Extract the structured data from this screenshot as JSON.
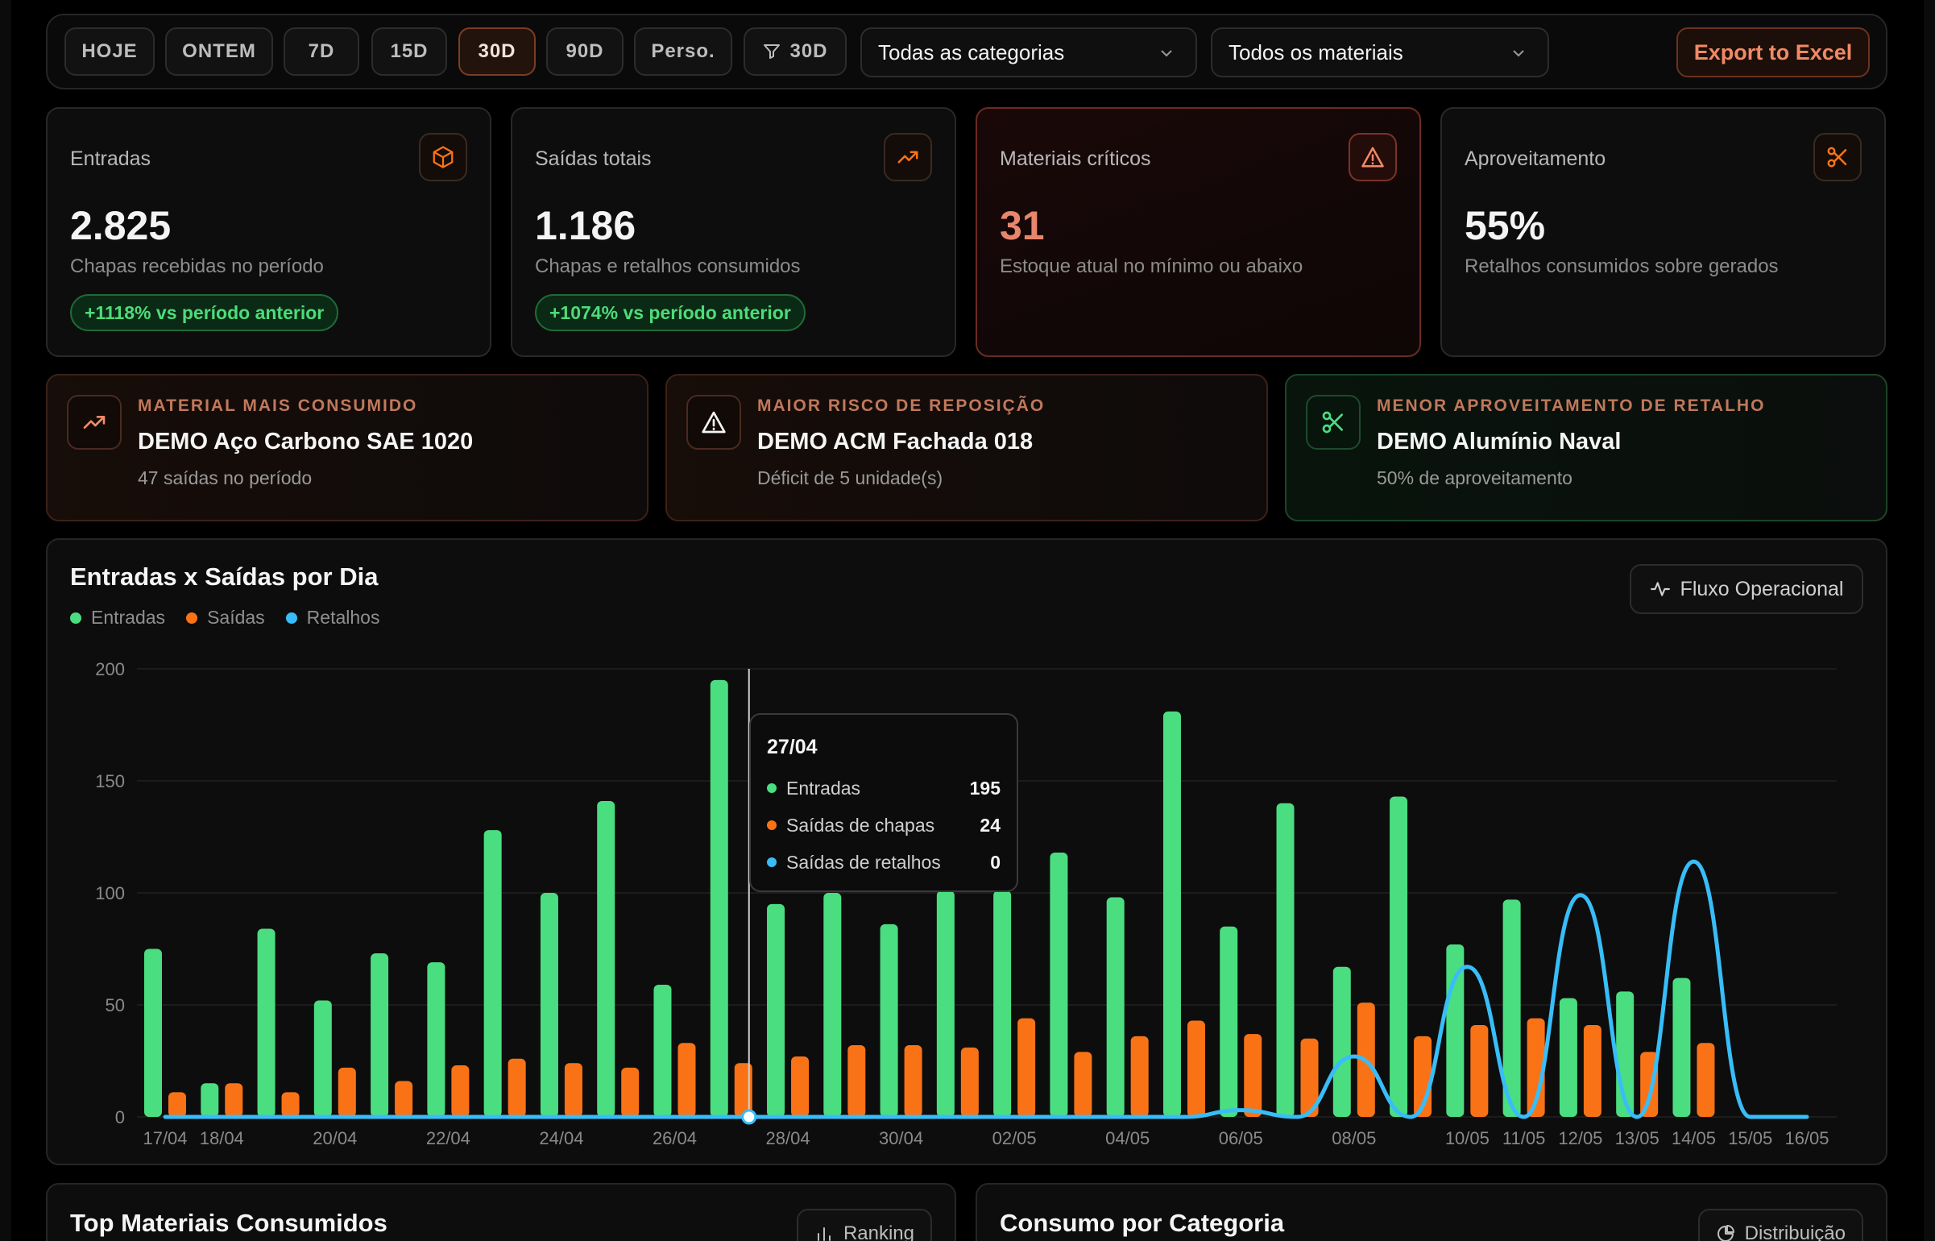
{
  "filters": {
    "periods": [
      "HOJE",
      "ONTEM",
      "7D",
      "15D",
      "30D",
      "90D",
      "Perso."
    ],
    "active_period": "30D",
    "filter_chip": "30D",
    "category_select": "Todas as categorias",
    "material_select": "Todos os materiais",
    "export_label": "Export to Excel"
  },
  "kpis": [
    {
      "label": "Entradas",
      "value": "2.825",
      "sub": "Chapas recebidas no período",
      "badge": "+1118% vs período anterior",
      "icon": "box-icon"
    },
    {
      "label": "Saídas totais",
      "value": "1.186",
      "sub": "Chapas e retalhos consumidos",
      "badge": "+1074% vs período anterior",
      "icon": "trending-up-icon"
    },
    {
      "label": "Materiais críticos",
      "value": "31",
      "sub": "Estoque atual no mínimo ou abaixo",
      "icon": "alert-icon"
    },
    {
      "label": "Aproveitamento",
      "value": "55%",
      "sub": "Retalhos consumidos sobre gerados",
      "icon": "scissors-icon"
    }
  ],
  "insights": [
    {
      "kicker": "MATERIAL MAIS CONSUMIDO",
      "title": "DEMO Aço Carbono SAE 1020",
      "desc": "47 saídas no período",
      "icon": "trending-up-icon"
    },
    {
      "kicker": "MAIOR RISCO DE REPOSIÇÃO",
      "title": "DEMO ACM Fachada 018",
      "desc": "Déficit de 5 unidade(s)",
      "icon": "alert-icon"
    },
    {
      "kicker": "MENOR APROVEITAMENTO DE RETALHO",
      "title": "DEMO Alumínio Naval",
      "desc": "50% de aproveitamento",
      "icon": "scissors-icon"
    }
  ],
  "chart_panel": {
    "title": "Entradas x Saídas por Dia",
    "button": "Fluxo Operacional"
  },
  "tooltip": {
    "date": "27/04",
    "rows": [
      {
        "label": "Entradas",
        "value": "195"
      },
      {
        "label": "Saídas de chapas",
        "value": "24"
      },
      {
        "label": "Saídas de retalhos",
        "value": "0"
      }
    ]
  },
  "bottom": {
    "left_title": "Top Materiais Consumidos",
    "left_button": "Ranking",
    "right_title": "Consumo por Categoria",
    "right_button": "Distribuição"
  },
  "colors": {
    "entradas": "#4ade80",
    "saidas": "#f97316",
    "retalhos": "#38bdf8",
    "accent": "#f08a65"
  },
  "chart_data": {
    "type": "bar",
    "x": [
      "17/04",
      "18/04",
      "19/04",
      "20/04",
      "21/04",
      "22/04",
      "23/04",
      "24/04",
      "25/04",
      "26/04",
      "27/04",
      "28/04",
      "29/04",
      "30/04",
      "01/05",
      "02/05",
      "03/05",
      "04/05",
      "05/05",
      "06/05",
      "07/05",
      "08/05",
      "09/05",
      "10/05",
      "11/05",
      "12/05",
      "13/05",
      "14/05",
      "15/05",
      "16/05"
    ],
    "x_tick_labels": [
      "17/04",
      "18/04",
      "20/04",
      "22/04",
      "24/04",
      "26/04",
      "28/04",
      "30/04",
      "02/05",
      "04/05",
      "06/05",
      "08/05",
      "10/05",
      "11/05",
      "12/05",
      "13/05",
      "14/05",
      "15/05",
      "16/05"
    ],
    "series": [
      {
        "name": "Entradas",
        "values": [
          75,
          15,
          84,
          52,
          73,
          69,
          128,
          100,
          141,
          59,
          195,
          95,
          100,
          86,
          101,
          101,
          118,
          98,
          181,
          85,
          140,
          67,
          143,
          77,
          97,
          53,
          56,
          62,
          0,
          0
        ]
      },
      {
        "name": "Saídas",
        "values": [
          11,
          15,
          11,
          22,
          16,
          23,
          26,
          24,
          22,
          33,
          24,
          27,
          32,
          32,
          31,
          44,
          29,
          36,
          43,
          37,
          35,
          51,
          36,
          41,
          44,
          41,
          29,
          33,
          0,
          0
        ]
      },
      {
        "name": "Retalhos",
        "values": [
          0,
          0,
          0,
          0,
          0,
          0,
          0,
          0,
          0,
          0,
          0,
          0,
          0,
          0,
          0,
          0,
          0,
          0,
          0,
          3,
          0,
          27,
          0,
          67,
          0,
          99,
          0,
          114,
          0,
          0
        ]
      }
    ],
    "ylim": [
      0,
      200
    ],
    "y_ticks": [
      0,
      50,
      100,
      150,
      200
    ],
    "legend": "top-left",
    "grid": true,
    "highlight_index": 10
  }
}
